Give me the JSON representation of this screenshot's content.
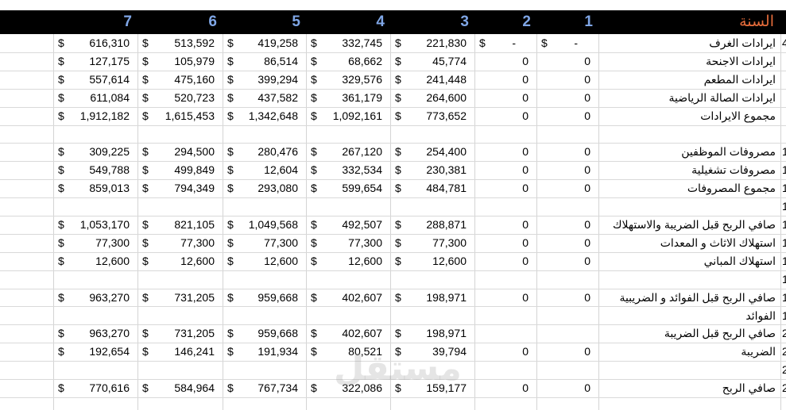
{
  "header": {
    "year_label": "السنة",
    "columns": [
      "1",
      "2",
      "3",
      "4",
      "5",
      "6",
      "7"
    ]
  },
  "rows": [
    {
      "label": "ايرادات الغرف",
      "rownum": "4",
      "c1": "-",
      "c2": "-",
      "vals": [
        "221,830",
        "332,745",
        "419,258",
        "513,592",
        "616,310"
      ],
      "dash": true
    },
    {
      "label": "ايرادات الاجنحة",
      "rownum": "",
      "c1": "0",
      "c2": "0",
      "vals": [
        "45,774",
        "68,662",
        "86,514",
        "105,979",
        "127,175"
      ]
    },
    {
      "label": "ايرادات المطعم",
      "rownum": "",
      "c1": "0",
      "c2": "0",
      "vals": [
        "241,448",
        "329,576",
        "399,294",
        "475,160",
        "557,614"
      ]
    },
    {
      "label": "ايرادات الصالة الرياضية",
      "rownum": "",
      "c1": "0",
      "c2": "0",
      "vals": [
        "264,600",
        "361,179",
        "437,582",
        "520,723",
        "611,084"
      ]
    },
    {
      "label": "مجموع الايرادات",
      "rownum": "",
      "c1": "0",
      "c2": "0",
      "vals": [
        "773,652",
        "1,092,161",
        "1,342,648",
        "1,615,453",
        "1,912,182"
      ]
    },
    {
      "empty": true
    },
    {
      "label": "مصروفات الموظفين",
      "rownum": "1",
      "c1": "0",
      "c2": "0",
      "vals": [
        "254,400",
        "267,120",
        "280,476",
        "294,500",
        "309,225"
      ]
    },
    {
      "label": "مصروفات تشغيلية",
      "rownum": "1",
      "c1": "0",
      "c2": "0",
      "vals": [
        "230,381",
        "332,534",
        "12,604",
        "499,849",
        "549,788"
      ]
    },
    {
      "label": "مجموع المصروفات",
      "rownum": "1",
      "c1": "0",
      "c2": "0",
      "vals": [
        "484,781",
        "599,654",
        "293,080",
        "794,349",
        "859,013"
      ]
    },
    {
      "empty": true,
      "rownum": "1"
    },
    {
      "label": "صافي الربح قبل الضريبة والاستهلاك",
      "rownum": "1",
      "c1": "0",
      "c2": "0",
      "vals": [
        "288,871",
        "492,507",
        "1,049,568",
        "821,105",
        "1,053,170"
      ]
    },
    {
      "label": "استهلاك الاثاث و المعدات",
      "rownum": "1",
      "c1": "0",
      "c2": "0",
      "vals": [
        "77,300",
        "77,300",
        "77,300",
        "77,300",
        "77,300"
      ]
    },
    {
      "label": "استهلاك المباني",
      "rownum": "1",
      "c1": "0",
      "c2": "0",
      "vals": [
        "12,600",
        "12,600",
        "12,600",
        "12,600",
        "12,600"
      ]
    },
    {
      "empty": true,
      "rownum": "1"
    },
    {
      "label": "صافي الربح قبل الفوائد و الضريبية",
      "rownum": "1",
      "c1": "0",
      "c2": "0",
      "vals": [
        "198,971",
        "402,607",
        "959,668",
        "731,205",
        "963,270"
      ]
    },
    {
      "label": "الفوائد",
      "rownum": "1",
      "empty_vals": true
    },
    {
      "label": "صافي الربح قبل الضريبة",
      "rownum": "2",
      "c1": "",
      "c2": "",
      "vals": [
        "198,971",
        "402,607",
        "959,668",
        "731,205",
        "963,270"
      ]
    },
    {
      "label": "الضريبة",
      "rownum": "2",
      "c1": "0",
      "c2": "0",
      "vals": [
        "39,794",
        "80,521",
        "191,934",
        "146,241",
        "192,654"
      ]
    },
    {
      "empty": true,
      "rownum": "2"
    },
    {
      "label": "صافي الربح",
      "rownum": "2",
      "c1": "0",
      "c2": "0",
      "vals": [
        "159,177",
        "322,086",
        "767,734",
        "584,964",
        "770,616"
      ]
    }
  ],
  "currency_symbol": "$",
  "watermark": "مستقل"
}
